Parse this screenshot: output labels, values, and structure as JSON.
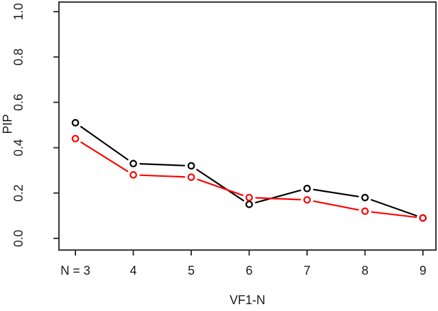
{
  "figure": {
    "background": "#ffffff",
    "axis_color": "#2b2b2b",
    "text_color": "#1a1a1a"
  },
  "chart_data": {
    "type": "line",
    "title": "",
    "xlabel": "VF1-N",
    "ylabel": "PIP",
    "x": [
      3,
      4,
      5,
      6,
      7,
      8,
      9
    ],
    "x_tick_labels": [
      "N = 3",
      "4",
      "5",
      "6",
      "7",
      "8",
      "9"
    ],
    "y_ticks": [
      0.0,
      0.2,
      0.4,
      0.6,
      0.8,
      1.0
    ],
    "y_tick_labels": [
      "0.0",
      "0.2",
      "0.4",
      "0.6",
      "0.8",
      "1.0"
    ],
    "xlim": [
      3,
      9
    ],
    "ylim": [
      0.0,
      1.0
    ],
    "grid": false,
    "legend": "none",
    "marker": "open-circle",
    "line_style": "segments-with-point-gaps",
    "series": [
      {
        "name": "black-series",
        "color": "#000000",
        "values": [
          0.51,
          0.33,
          0.32,
          0.15,
          0.22,
          0.18,
          0.09
        ]
      },
      {
        "name": "red-series",
        "color": "#ff0000",
        "values": [
          0.44,
          0.28,
          0.27,
          0.18,
          0.17,
          0.12,
          0.09
        ]
      }
    ]
  }
}
